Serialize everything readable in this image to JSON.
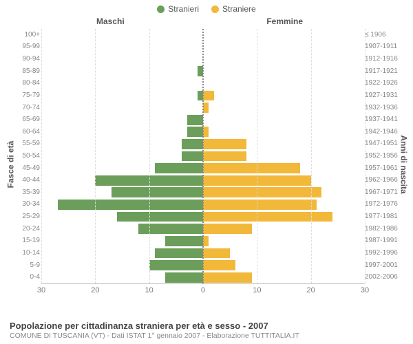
{
  "legend": {
    "male": {
      "label": "Stranieri",
      "color": "#6b9e5a"
    },
    "female": {
      "label": "Straniere",
      "color": "#f2b83a"
    }
  },
  "columns": {
    "left": "Maschi",
    "right": "Femmine"
  },
  "axes": {
    "y_left_title": "Fasce di età",
    "y_right_title": "Anni di nascita",
    "x_max": 30,
    "x_ticks_left": [
      30,
      20,
      10,
      0
    ],
    "x_ticks_right": [
      0,
      10,
      20,
      30
    ]
  },
  "colors": {
    "grid": "#dddddd",
    "axis": "#bbbbbb",
    "center_line": "#888888",
    "text_muted": "#888888",
    "background": "#ffffff"
  },
  "pyramid": {
    "type": "population-pyramid",
    "rows": [
      {
        "age": "100+",
        "birth": "≤ 1906",
        "m": 0,
        "f": 0
      },
      {
        "age": "95-99",
        "birth": "1907-1911",
        "m": 0,
        "f": 0
      },
      {
        "age": "90-94",
        "birth": "1912-1916",
        "m": 0,
        "f": 0
      },
      {
        "age": "85-89",
        "birth": "1917-1921",
        "m": 1,
        "f": 0
      },
      {
        "age": "80-84",
        "birth": "1922-1926",
        "m": 0,
        "f": 0
      },
      {
        "age": "75-79",
        "birth": "1927-1931",
        "m": 1,
        "f": 2
      },
      {
        "age": "70-74",
        "birth": "1932-1936",
        "m": 0,
        "f": 1
      },
      {
        "age": "65-69",
        "birth": "1937-1941",
        "m": 3,
        "f": 0
      },
      {
        "age": "60-64",
        "birth": "1942-1946",
        "m": 3,
        "f": 1
      },
      {
        "age": "55-59",
        "birth": "1947-1951",
        "m": 4,
        "f": 8
      },
      {
        "age": "50-54",
        "birth": "1952-1956",
        "m": 4,
        "f": 8
      },
      {
        "age": "45-49",
        "birth": "1957-1961",
        "m": 9,
        "f": 18
      },
      {
        "age": "40-44",
        "birth": "1962-1966",
        "m": 20,
        "f": 20
      },
      {
        "age": "35-39",
        "birth": "1967-1971",
        "m": 17,
        "f": 22
      },
      {
        "age": "30-34",
        "birth": "1972-1976",
        "m": 27,
        "f": 21
      },
      {
        "age": "25-29",
        "birth": "1977-1981",
        "m": 16,
        "f": 24
      },
      {
        "age": "20-24",
        "birth": "1982-1986",
        "m": 12,
        "f": 9
      },
      {
        "age": "15-19",
        "birth": "1987-1991",
        "m": 7,
        "f": 1
      },
      {
        "age": "10-14",
        "birth": "1992-1996",
        "m": 9,
        "f": 5
      },
      {
        "age": "5-9",
        "birth": "1997-2001",
        "m": 10,
        "f": 6
      },
      {
        "age": "0-4",
        "birth": "2002-2006",
        "m": 7,
        "f": 9
      }
    ]
  },
  "footer": {
    "title": "Popolazione per cittadinanza straniera per età e sesso - 2007",
    "subtitle": "COMUNE DI TUSCANIA (VT) - Dati ISTAT 1° gennaio 2007 - Elaborazione TUTTITALIA.IT"
  }
}
